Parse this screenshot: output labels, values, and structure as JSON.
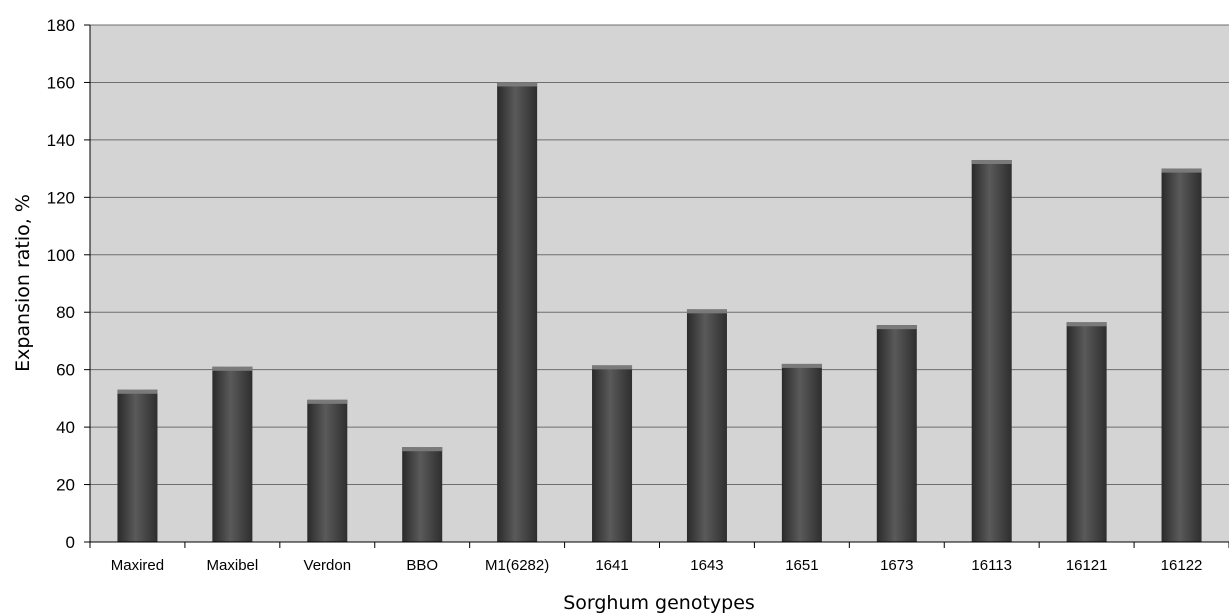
{
  "chart_data": {
    "type": "bar",
    "categories": [
      "Maxired",
      "Maxibel",
      "Verdon",
      "BBO",
      "M1(6282)",
      "1641",
      "1643",
      "1651",
      "1673",
      "16113",
      "16121",
      "16122"
    ],
    "values": [
      53,
      61,
      49.5,
      33,
      160,
      61.5,
      81,
      62,
      75.5,
      133,
      76.5,
      130
    ],
    "title": "",
    "xlabel": "Sorghum genotypes",
    "ylabel": "Expansion ratio, %",
    "ylim": [
      0,
      180
    ],
    "yticks": [
      "0",
      "20",
      "40",
      "60",
      "80",
      "100",
      "120",
      "140",
      "160",
      "180"
    ],
    "grid": true,
    "legend": "none"
  },
  "colors": {
    "plot_background": "#d4d4d4",
    "bar": "#4a4a4a",
    "bar_highlight": "#7a7a7a",
    "gridline": "#6e6e6e"
  }
}
